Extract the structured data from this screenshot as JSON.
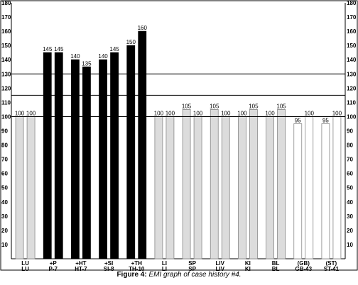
{
  "chart_data": {
    "type": "bar",
    "ylim": [
      0,
      180
    ],
    "yticks": [
      10,
      20,
      30,
      40,
      50,
      60,
      70,
      80,
      90,
      100,
      110,
      120,
      130,
      140,
      150,
      160,
      170,
      180
    ],
    "reference_lines": [
      100,
      115,
      130
    ],
    "groups": [
      {
        "top_label": "LU",
        "bottom_label": "LU",
        "bars": [
          {
            "value": 100,
            "label": "100",
            "style": "gray"
          },
          {
            "value": 100,
            "label": "100",
            "style": "gray"
          }
        ]
      },
      {
        "top_label": "+P",
        "bottom_label": "P-7",
        "bars": [
          {
            "value": 145,
            "label": "145",
            "style": "black"
          },
          {
            "value": 145,
            "label": "145",
            "style": "black"
          }
        ]
      },
      {
        "top_label": "+HT",
        "bottom_label": "HT-7",
        "bars": [
          {
            "value": 140,
            "label": "140",
            "style": "black"
          },
          {
            "value": 135,
            "label": "135",
            "style": "black"
          }
        ]
      },
      {
        "top_label": "+SI",
        "bottom_label": "SI-8",
        "bars": [
          {
            "value": 140,
            "label": "140",
            "style": "black"
          },
          {
            "value": 145,
            "label": "145",
            "style": "black"
          }
        ]
      },
      {
        "top_label": "+TH",
        "bottom_label": "TH-10",
        "bars": [
          {
            "value": 150,
            "label": "150",
            "style": "black"
          },
          {
            "value": 160,
            "label": "160",
            "style": "black"
          }
        ]
      },
      {
        "top_label": "LI",
        "bottom_label": "LI",
        "bars": [
          {
            "value": 100,
            "label": "100",
            "style": "gray"
          },
          {
            "value": 100,
            "label": "100",
            "style": "gray"
          }
        ]
      },
      {
        "top_label": "SP",
        "bottom_label": "SP",
        "bars": [
          {
            "value": 105,
            "label": "105",
            "style": "gray"
          },
          {
            "value": 100,
            "label": "100",
            "style": "gray"
          }
        ]
      },
      {
        "top_label": "LIV",
        "bottom_label": "LIV",
        "bars": [
          {
            "value": 105,
            "label": "105",
            "style": "gray"
          },
          {
            "value": 100,
            "label": "100",
            "style": "gray"
          }
        ]
      },
      {
        "top_label": "KI",
        "bottom_label": "KI",
        "bars": [
          {
            "value": 100,
            "label": "100",
            "style": "gray"
          },
          {
            "value": 105,
            "label": "105",
            "style": "gray"
          }
        ]
      },
      {
        "top_label": "BL",
        "bottom_label": "BL",
        "bars": [
          {
            "value": 100,
            "label": "100",
            "style": "gray"
          },
          {
            "value": 105,
            "label": "105",
            "style": "gray"
          }
        ]
      },
      {
        "top_label": "(GB)",
        "bottom_label": "GB-43",
        "bars": [
          {
            "value": 95,
            "label": "95",
            "style": "white"
          },
          {
            "value": 100,
            "label": "100",
            "style": "white"
          }
        ]
      },
      {
        "top_label": "(ST)",
        "bottom_label": "ST-41",
        "bars": [
          {
            "value": 95,
            "label": "95",
            "style": "white"
          },
          {
            "value": 100,
            "label": "100",
            "style": "white"
          }
        ]
      }
    ],
    "colors": {
      "black": "#000000",
      "gray": "#dcdcdc",
      "white": "#ffffff",
      "frame": "#000000"
    }
  },
  "caption": {
    "label": "Figure 4:",
    "text": "EMI graph of case history #4."
  }
}
